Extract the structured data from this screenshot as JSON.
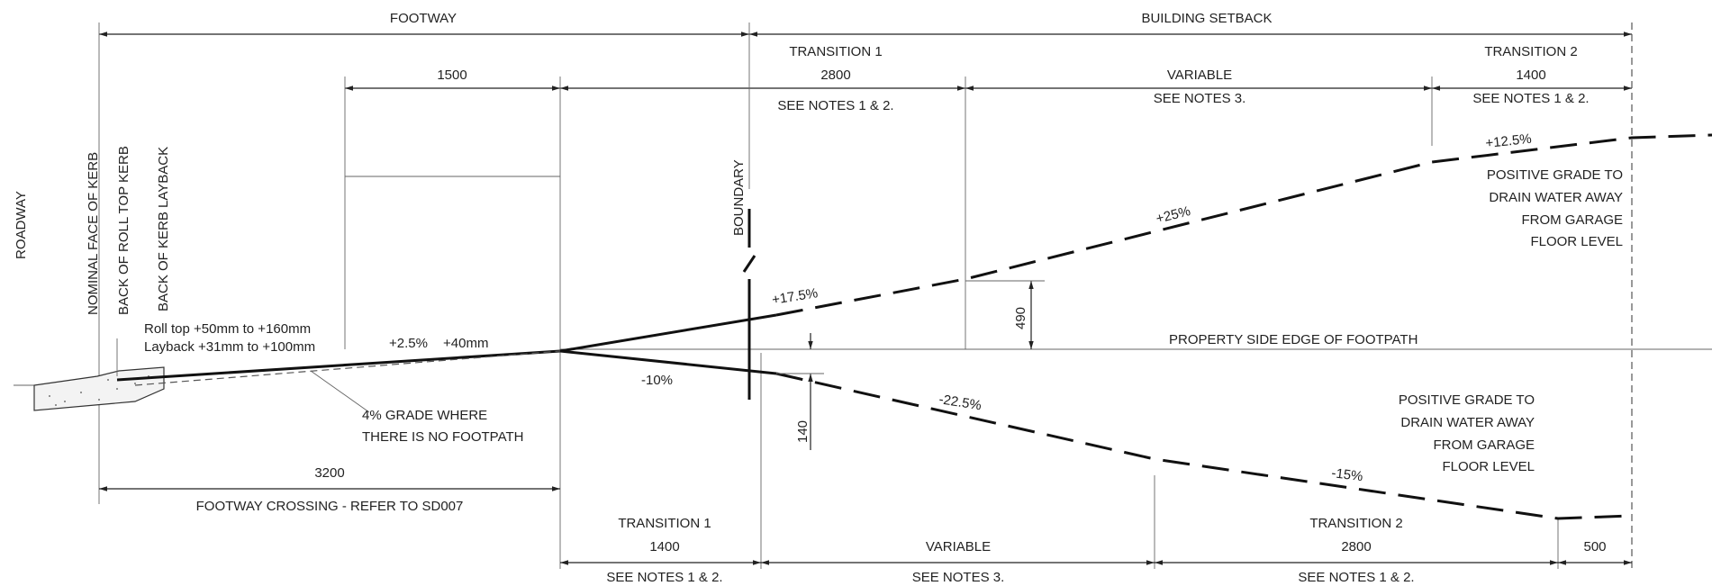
{
  "labels": {
    "footway": "FOOTWAY",
    "building_setback": "BUILDING SETBACK",
    "dim_1500": "1500",
    "top_transition1_title": "TRANSITION 1",
    "top_transition1_dim": "2800",
    "top_transition1_notes": "SEE NOTES 1 & 2.",
    "top_variable_title": "VARIABLE",
    "top_variable_notes": "SEE NOTES 3.",
    "top_transition2_title": "TRANSITION 2",
    "top_transition2_dim": "1400",
    "top_transition2_notes": "SEE NOTES 1 & 2.",
    "grade_12_5": "+12.5%",
    "grade_25": "+25%",
    "grade_17_5": "+17.5%",
    "grade_2_5": "+2.5%",
    "dim_40mm": "+40mm",
    "grade_neg10": "-10%",
    "grade_neg22_5": "-22.5%",
    "grade_neg15": "-15%",
    "dim_490": "490",
    "dim_140": "140",
    "roadway": "ROADWAY",
    "nominal_face_kerb": "NOMINAL FACE OF KERB",
    "back_roll_top_kerb": "BACK OF ROLL TOP KERB",
    "back_kerb_layback": "BACK OF KERB LAYBACK",
    "boundary": "BOUNDARY",
    "roll_top_note": "Roll top +50mm to +160mm",
    "layback_note": "Layback +31mm to +100mm",
    "property_edge": "PROPERTY    SIDE    EDGE    OF    FOOTPATH",
    "upper_positive_grade": [
      "POSITIVE GRADE TO",
      "DRAIN WATER AWAY",
      "FROM GARAGE",
      "FLOOR LEVEL"
    ],
    "lower_positive_grade": [
      "POSITIVE GRADE TO",
      "DRAIN WATER AWAY",
      "FROM GARAGE",
      "FLOOR LEVEL"
    ],
    "grade_4_note": [
      "4% GRADE WHERE",
      "THERE IS NO FOOTPATH"
    ],
    "dim_3200": "3200",
    "footway_crossing": "FOOTWAY CROSSING - REFER TO SD007",
    "bot_transition1_title": "TRANSITION 1",
    "bot_transition1_dim": "1400",
    "bot_transition1_notes": "SEE NOTES 1 & 2.",
    "bot_variable_title": "VARIABLE",
    "bot_variable_notes": "SEE NOTES 3.",
    "bot_transition2_title": "TRANSITION 2",
    "bot_transition2_dim": "2800",
    "bot_transition2_notes": "SEE NOTES 1 & 2.",
    "dim_500": "500"
  }
}
